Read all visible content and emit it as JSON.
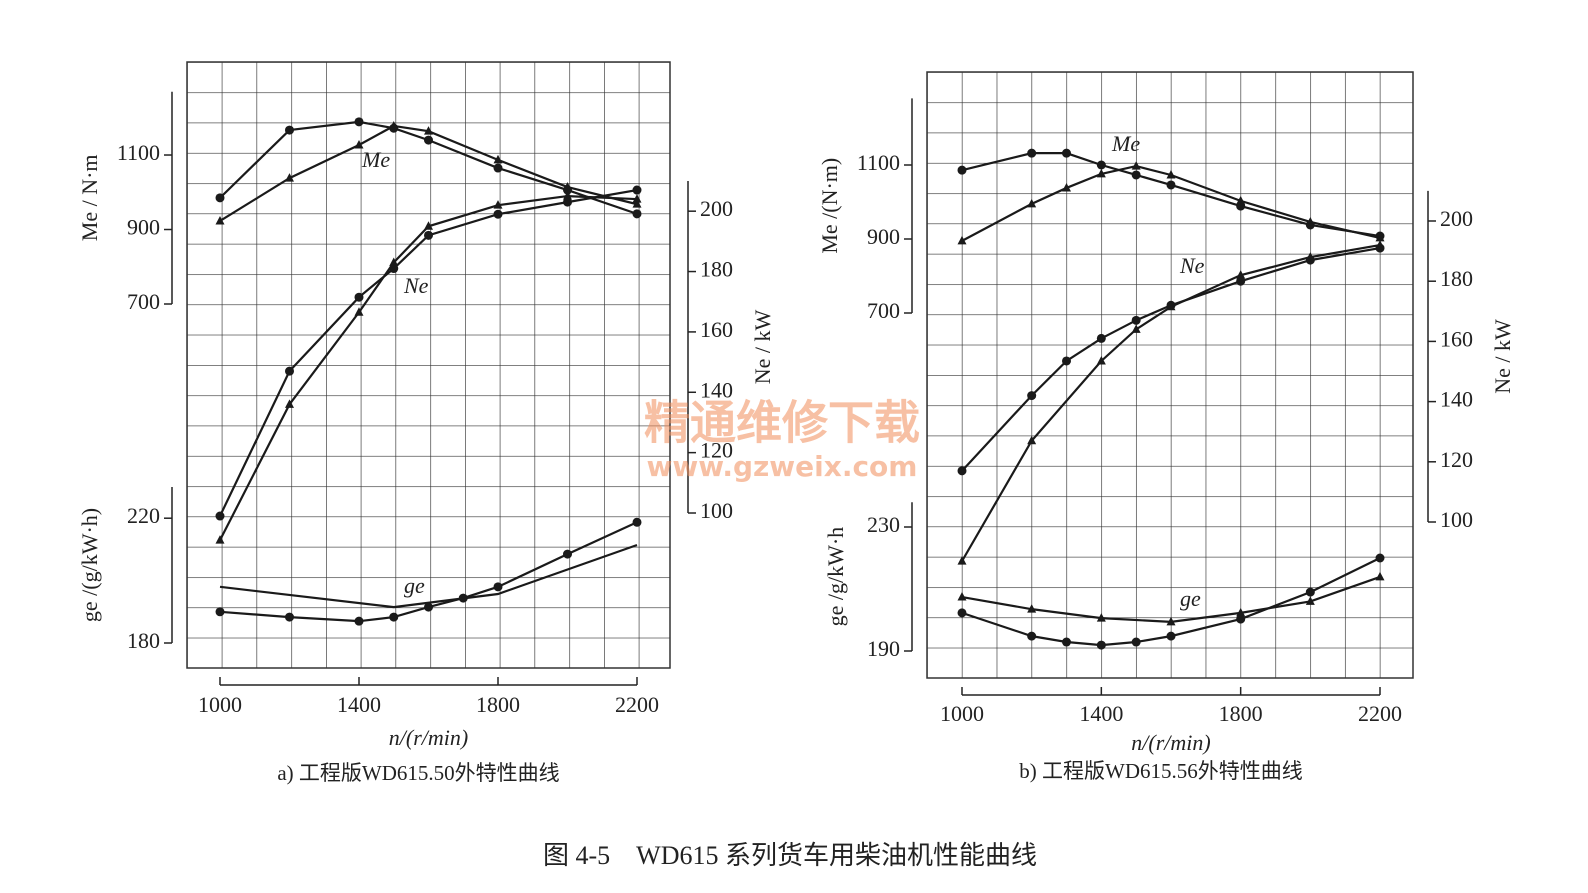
{
  "chart_data": [
    {
      "type": "line",
      "caption": "a) 工程版WD615.50外特性曲线",
      "xlabel": "n/(r/min)",
      "xlim": [
        1000,
        2200
      ],
      "xticks": [
        1000,
        1400,
        1800,
        2200
      ],
      "ylabel": "Me / N·m",
      "ylim": [
        700,
        1270
      ],
      "yticks": [
        700,
        900,
        1100
      ],
      "y2label": "Ne / kW",
      "y2lim": [
        100,
        210
      ],
      "y2ticks": [
        100,
        120,
        140,
        160,
        180,
        200
      ],
      "y3label": "ge /(g/kW·h)",
      "y3lim": [
        180,
        230
      ],
      "y3ticks": [
        180,
        220
      ],
      "grid": true,
      "color": "#1a1a1a",
      "series": [
        {
          "name": "Me",
          "axis": "y",
          "marker": "circle",
          "x": [
            1000,
            1200,
            1400,
            1500,
            1600,
            1800,
            2000,
            2200
          ],
          "values": [
            985,
            1167,
            1189,
            1172,
            1140,
            1065,
            1006,
            942
          ]
        },
        {
          "axis": "y",
          "marker": "triangle",
          "x": [
            1000,
            1200,
            1400,
            1500,
            1600,
            1800,
            2000,
            2200
          ],
          "values": [
            923,
            1038,
            1127,
            1178,
            1164,
            1087,
            1014,
            968
          ]
        },
        {
          "name": "Ne",
          "axis": "y2",
          "marker": "circle",
          "x": [
            1000,
            1200,
            1400,
            1500,
            1600,
            1800,
            2000,
            2200
          ],
          "values": [
            99,
            147,
            171.5,
            181,
            192,
            199,
            203,
            207
          ]
        },
        {
          "axis": "y2",
          "marker": "triangle",
          "x": [
            1000,
            1200,
            1400,
            1500,
            1600,
            1800,
            2000,
            2200
          ],
          "values": [
            91,
            136,
            166.5,
            183,
            195,
            202,
            205,
            204
          ]
        },
        {
          "name": "ge",
          "axis": "y3",
          "marker": "circle",
          "x": [
            1000,
            1200,
            1400,
            1500,
            1600,
            1700,
            1800,
            2000,
            2200
          ],
          "values": [
            190,
            188.3,
            187,
            188.3,
            191.5,
            194.4,
            198,
            208.5,
            218.7
          ]
        },
        {
          "axis": "y3",
          "marker": "none",
          "x": [
            1000,
            1500,
            1800,
            2200
          ],
          "values": [
            198,
            191.5,
            195.7,
            211.4
          ]
        }
      ]
    },
    {
      "type": "line",
      "caption": "b) 工程版WD615.56外特性曲线",
      "xlabel": "n/(r/min)",
      "xlim": [
        1000,
        2200
      ],
      "xticks": [
        1000,
        1400,
        1800,
        2200
      ],
      "ylabel": "Me /(N·m)",
      "ylim": [
        700,
        1280
      ],
      "yticks": [
        700,
        900,
        1100
      ],
      "y2label": "Ne / kW",
      "y2lim": [
        100,
        210
      ],
      "y2ticks": [
        100,
        120,
        140,
        160,
        180,
        200
      ],
      "y3label": "ge /g/kW·h",
      "y3lim": [
        190,
        238
      ],
      "y3ticks": [
        190,
        230
      ],
      "grid": true,
      "color": "#1a1a1a",
      "series": [
        {
          "name": "Me",
          "axis": "y",
          "marker": "circle",
          "x": [
            1000,
            1200,
            1300,
            1400,
            1500,
            1600,
            1800,
            2000,
            2200
          ],
          "values": [
            1086,
            1132,
            1132,
            1100,
            1073,
            1046,
            989,
            938,
            908
          ]
        },
        {
          "axis": "y",
          "marker": "triangle",
          "x": [
            1000,
            1200,
            1300,
            1400,
            1500,
            1600,
            1800,
            2000,
            2200
          ],
          "values": [
            895,
            995,
            1038,
            1076,
            1097,
            1073,
            1003,
            946,
            903
          ]
        },
        {
          "name": "Ne",
          "axis": "y2",
          "marker": "circle",
          "x": [
            1000,
            1200,
            1300,
            1400,
            1500,
            1600,
            1800,
            2000,
            2200
          ],
          "values": [
            117,
            142,
            153.5,
            161,
            167,
            172,
            180,
            187,
            191
          ]
        },
        {
          "axis": "y2",
          "marker": "triangle",
          "x": [
            1000,
            1200,
            1400,
            1500,
            1600,
            1800,
            2000,
            2200
          ],
          "values": [
            87,
            127,
            153.5,
            164,
            171.5,
            182,
            188,
            192
          ]
        },
        {
          "name": "ge",
          "axis": "y3",
          "marker": "circle",
          "x": [
            1000,
            1200,
            1300,
            1400,
            1500,
            1600,
            1800,
            2000,
            2200
          ],
          "values": [
            202.3,
            194.8,
            192.9,
            191.9,
            192.9,
            194.8,
            200.3,
            209,
            220
          ]
        },
        {
          "axis": "y3",
          "marker": "triangle",
          "x": [
            1000,
            1200,
            1400,
            1600,
            1800,
            2000,
            2200
          ],
          "values": [
            207.4,
            203.5,
            200.6,
            199.4,
            202.3,
            206,
            213.9
          ]
        }
      ]
    }
  ],
  "figure_caption": "图 4-5　WD615 系列货车用柴油机性能曲线",
  "watermark": {
    "title": "精通维修下载",
    "url": "www.gzweix.com"
  }
}
